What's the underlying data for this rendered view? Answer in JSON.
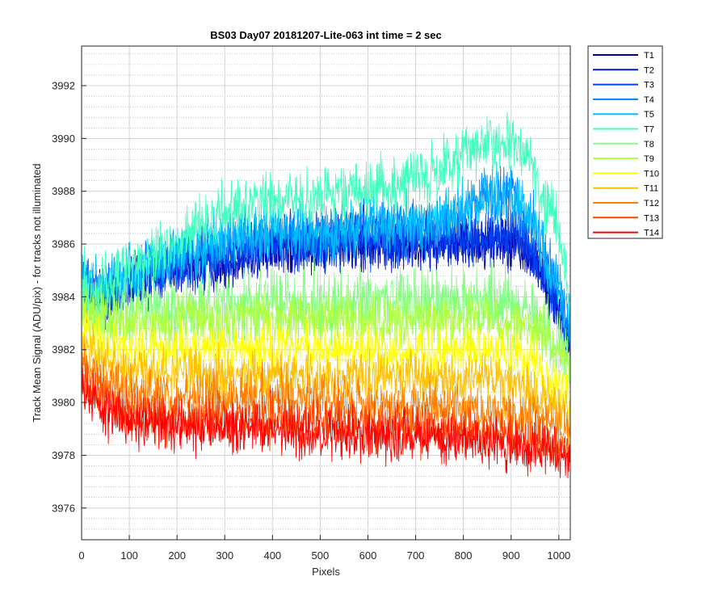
{
  "chart_data": {
    "type": "line",
    "title": "BS03 Day07 20181207-Lite-063 int time = 2 sec",
    "xlabel": "Pixels",
    "ylabel": "Track Mean Signal (ADU/pix) - for tracks not illuminated",
    "xlim": [
      0,
      1024
    ],
    "ylim": [
      3974.8,
      3993.5
    ],
    "xticks": [
      0,
      100,
      200,
      300,
      400,
      500,
      600,
      700,
      800,
      900,
      1000
    ],
    "yticks": [
      3976,
      3978,
      3980,
      3982,
      3984,
      3986,
      3988,
      3990,
      3992
    ],
    "grid": true,
    "minor_grid": true,
    "legend_position": "outside-top-right",
    "x": [
      0,
      50,
      100,
      150,
      200,
      250,
      300,
      350,
      400,
      450,
      500,
      550,
      600,
      650,
      700,
      750,
      800,
      850,
      900,
      950,
      1000,
      1024
    ],
    "series": [
      {
        "name": "T1",
        "color": "#0000a0",
        "values": [
          3984.2,
          3984.0,
          3984.3,
          3984.8,
          3985.0,
          3985.2,
          3985.3,
          3985.6,
          3985.8,
          3985.9,
          3985.8,
          3986.0,
          3986.1,
          3985.9,
          3986.0,
          3986.1,
          3986.0,
          3986.1,
          3986.2,
          3985.3,
          3983.4,
          3982.0
        ]
      },
      {
        "name": "T2",
        "color": "#0018d0",
        "values": [
          3984.3,
          3984.1,
          3984.4,
          3984.9,
          3985.1,
          3985.3,
          3985.4,
          3985.7,
          3985.9,
          3986.0,
          3985.9,
          3986.1,
          3986.2,
          3986.0,
          3986.1,
          3986.2,
          3986.1,
          3986.2,
          3986.3,
          3985.4,
          3983.5,
          3982.1
        ]
      },
      {
        "name": "T3",
        "color": "#0040f0",
        "values": [
          3984.3,
          3984.2,
          3984.5,
          3985.0,
          3985.2,
          3985.4,
          3985.5,
          3985.8,
          3986.0,
          3986.1,
          3986.0,
          3986.2,
          3986.3,
          3986.1,
          3986.2,
          3986.3,
          3986.2,
          3986.3,
          3986.4,
          3985.5,
          3983.6,
          3982.2
        ]
      },
      {
        "name": "T4",
        "color": "#0080ff",
        "values": [
          3984.4,
          3984.3,
          3984.7,
          3985.2,
          3985.5,
          3985.8,
          3986.0,
          3986.2,
          3986.4,
          3986.4,
          3986.2,
          3986.5,
          3986.7,
          3986.5,
          3986.6,
          3986.8,
          3987.3,
          3987.7,
          3987.8,
          3986.6,
          3984.2,
          3982.8
        ]
      },
      {
        "name": "T5",
        "color": "#00c0ff",
        "values": [
          3984.5,
          3984.4,
          3984.8,
          3985.3,
          3985.6,
          3985.9,
          3986.1,
          3986.3,
          3986.5,
          3986.5,
          3986.3,
          3986.6,
          3986.8,
          3986.6,
          3986.7,
          3986.9,
          3987.4,
          3987.8,
          3987.9,
          3986.7,
          3984.3,
          3982.9
        ]
      },
      {
        "name": "T7",
        "color": "#40ffc0",
        "values": [
          3984.4,
          3984.5,
          3985.0,
          3985.6,
          3986.1,
          3986.6,
          3987.2,
          3987.6,
          3987.8,
          3987.9,
          3987.6,
          3987.9,
          3988.2,
          3988.1,
          3988.3,
          3988.7,
          3989.4,
          3989.9,
          3989.8,
          3988.7,
          3986.4,
          3984.0
        ]
      },
      {
        "name": "T8",
        "color": "#80ff80",
        "values": [
          3983.9,
          3983.4,
          3983.4,
          3983.5,
          3983.6,
          3983.6,
          3983.7,
          3983.8,
          3983.8,
          3983.8,
          3983.7,
          3983.8,
          3983.8,
          3983.7,
          3983.7,
          3983.8,
          3983.8,
          3983.8,
          3983.7,
          3983.3,
          3982.4,
          3981.8
        ]
      },
      {
        "name": "T9",
        "color": "#b0ff40",
        "values": [
          3983.5,
          3983.0,
          3983.0,
          3983.0,
          3983.1,
          3983.1,
          3983.1,
          3983.2,
          3983.2,
          3983.2,
          3983.1,
          3983.2,
          3983.2,
          3983.1,
          3983.1,
          3983.2,
          3983.2,
          3983.2,
          3983.1,
          3982.8,
          3982.0,
          3981.4
        ]
      },
      {
        "name": "T10",
        "color": "#ffff00",
        "values": [
          3982.8,
          3982.2,
          3982.0,
          3982.0,
          3982.0,
          3982.0,
          3982.0,
          3982.1,
          3982.1,
          3982.1,
          3982.0,
          3982.0,
          3982.0,
          3981.9,
          3981.9,
          3981.9,
          3981.9,
          3981.9,
          3981.8,
          3981.5,
          3980.8,
          3980.3
        ]
      },
      {
        "name": "T11",
        "color": "#ffc000",
        "values": [
          3982.2,
          3981.5,
          3981.2,
          3981.1,
          3981.1,
          3981.1,
          3981.1,
          3981.1,
          3981.1,
          3981.1,
          3981.0,
          3981.0,
          3981.0,
          3980.9,
          3980.9,
          3980.9,
          3980.8,
          3980.8,
          3980.7,
          3980.4,
          3979.8,
          3979.4
        ]
      },
      {
        "name": "T12",
        "color": "#ff8000",
        "values": [
          3981.6,
          3980.8,
          3980.4,
          3980.3,
          3980.2,
          3980.2,
          3980.2,
          3980.2,
          3980.2,
          3980.1,
          3980.1,
          3980.0,
          3980.0,
          3979.9,
          3979.9,
          3979.8,
          3979.8,
          3979.7,
          3979.6,
          3979.4,
          3979.0,
          3978.7
        ]
      },
      {
        "name": "T13",
        "color": "#ff4000",
        "values": [
          3981.0,
          3980.1,
          3979.7,
          3979.5,
          3979.4,
          3979.4,
          3979.4,
          3979.4,
          3979.4,
          3979.3,
          3979.3,
          3979.2,
          3979.2,
          3979.1,
          3979.1,
          3979.0,
          3979.0,
          3978.9,
          3978.8,
          3978.6,
          3978.3,
          3978.1
        ]
      },
      {
        "name": "T14",
        "color": "#ff0000",
        "values": [
          3980.6,
          3979.6,
          3979.3,
          3979.1,
          3979.0,
          3979.0,
          3979.0,
          3979.0,
          3979.0,
          3978.9,
          3978.9,
          3978.8,
          3978.8,
          3978.7,
          3978.7,
          3978.6,
          3978.6,
          3978.5,
          3978.4,
          3978.3,
          3978.1,
          3977.9
        ]
      }
    ],
    "noise_amplitude": [
      1.5,
      1.5,
      1.5,
      1.6,
      1.6,
      1.7,
      1.9,
      1.5,
      1.4,
      1.4,
      1.4,
      1.4,
      1.4
    ],
    "points": 1024
  }
}
